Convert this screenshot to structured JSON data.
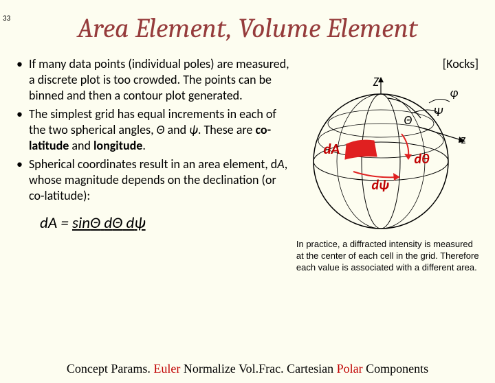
{
  "page_number": "33",
  "title": "Area Element, Volume Element",
  "bullets": [
    {
      "parts": [
        {
          "t": "If many data points (individual poles) are measured, a discrete plot is too crowded.  The points can be binned and then a contour plot generated."
        }
      ]
    },
    {
      "parts": [
        {
          "t": "The simplest grid has equal increments in each of the two spherical angles, "
        },
        {
          "t": "Θ",
          "i": true
        },
        {
          "t": " and "
        },
        {
          "t": "ψ",
          "i": true
        },
        {
          "t": ".  These are "
        },
        {
          "t": "co-latitude",
          "b": true
        },
        {
          "t": " and "
        },
        {
          "t": "longitude",
          "b": true
        },
        {
          "t": "."
        }
      ]
    },
    {
      "parts": [
        {
          "t": "Spherical coordinates result in an area element, d"
        },
        {
          "t": "A",
          "i": true
        },
        {
          "t": ", whose magnitude depends on the declination (or co-latitude):"
        }
      ]
    }
  ],
  "formula_parts": [
    {
      "t": "d"
    },
    {
      "t": "A",
      "i": true
    },
    {
      "t": " = "
    },
    {
      "t": "sin",
      "u": true
    },
    {
      "t": "Θ",
      "i": true,
      "u": true
    },
    {
      "t": " ",
      "u": true
    },
    {
      "t": "d",
      "u": true
    },
    {
      "t": "Θ",
      "i": true,
      "u": true
    },
    {
      "t": " ",
      "u": true
    },
    {
      "t": "d",
      "u": true
    },
    {
      "t": "ψ",
      "i": true,
      "u": true
    }
  ],
  "ref_label": "[Kocks]",
  "sphere": {
    "colors": {
      "stroke": "#000000",
      "red": "#e02020",
      "bg": "#fdfdf0"
    },
    "labels": {
      "Z": "Z",
      "phi": "φ",
      "Psi": "Ψ",
      "z": "z",
      "Theta": "Θ",
      "dA": "dA",
      "dtheta": "dθ",
      "dpsi": "dψ"
    }
  },
  "caption": "In practice, a diffracted intensity is measured at the center of each cell in the grid.  Therefore each value is associated with a different area.",
  "footer": {
    "parts": [
      {
        "t": "Concept  "
      },
      {
        "t": "Params.  "
      },
      {
        "t": "Euler",
        "hl": true
      },
      {
        "t": "  Normalize  "
      },
      {
        "t": "Vol.Frac.  "
      },
      {
        "t": "Cartesian  "
      },
      {
        "t": "Polar ",
        "hl": true
      },
      {
        "t": "Components"
      }
    ]
  }
}
